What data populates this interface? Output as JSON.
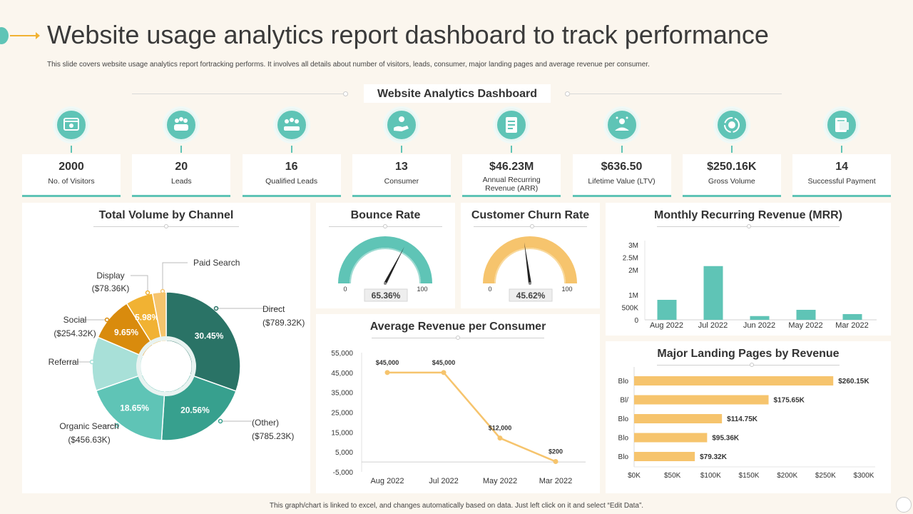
{
  "header": {
    "title": "Website usage analytics report dashboard to track performance",
    "subtitle": "This slide covers website usage analytics report fortracking performs. It involves all details about  number of visitors, leads, consumer, major landing pages and average revenue per consumer."
  },
  "dashboard_title": "Website Analytics Dashboard",
  "kpis": [
    {
      "value": "2000",
      "label": "No. of Visitors",
      "icon": "browser-window-icon"
    },
    {
      "value": "20",
      "label": "Leads",
      "icon": "group-people-icon"
    },
    {
      "value": "16",
      "label": "Qualified Leads",
      "icon": "team-meeting-icon"
    },
    {
      "value": "13",
      "label": "Consumer",
      "icon": "hand-person-icon"
    },
    {
      "value": "$46.23M",
      "label": "Annual Recurring Revenue (ARR)",
      "icon": "document-list-icon"
    },
    {
      "value": "$636.50",
      "label": "Lifetime Value (LTV)",
      "icon": "person-value-icon"
    },
    {
      "value": "$250.16K",
      "label": "Gross Volume",
      "icon": "cycle-money-icon"
    },
    {
      "value": "14",
      "label": "Successful Payment",
      "icon": "receipt-icon"
    }
  ],
  "colors": {
    "teal": "#5fc4b6",
    "dark_teal": "#2a7366",
    "mid_teal": "#37a08e",
    "light_teal": "#a8e0d8",
    "amber": "#f1b233",
    "orange": "#d98b0d",
    "light_amber": "#f6c46d",
    "bar_yellow": "#f6c46d"
  },
  "chart_data": [
    {
      "id": "total-volume",
      "type": "pie",
      "title": "Total Volume by Channel",
      "slices": [
        {
          "label": "Direct",
          "sub": "($789.32K)",
          "percent": 30.45,
          "pct_label": "30.45%"
        },
        {
          "label": "(Other)",
          "sub": "($785.23K)",
          "percent": 20.56,
          "pct_label": "20.56%"
        },
        {
          "label": "Organic Search",
          "sub": "($456.63K)",
          "percent": 18.65,
          "pct_label": "18.65%"
        },
        {
          "label": "Referral",
          "sub": "",
          "percent": 11.74,
          "pct_label": ""
        },
        {
          "label": "Social",
          "sub": "($254.32K)",
          "percent": 9.65,
          "pct_label": "9.65%"
        },
        {
          "label": "Display",
          "sub": "($78.36K)",
          "percent": 5.98,
          "pct_label": "5.98%"
        },
        {
          "label": "Paid Search",
          "sub": "",
          "percent": 2.97,
          "pct_label": ""
        }
      ]
    },
    {
      "id": "bounce-rate",
      "type": "gauge",
      "title": "Bounce Rate",
      "value": 65.36,
      "value_label": "65.36%",
      "min_label": "0",
      "max_label": "100"
    },
    {
      "id": "churn-rate",
      "type": "gauge",
      "title": "Customer Churn Rate",
      "value": 45.62,
      "value_label": "45.62%",
      "min_label": "0",
      "max_label": "100"
    },
    {
      "id": "mrr",
      "type": "bar",
      "title": "Monthly Recurring Revenue (MRR)",
      "categories": [
        "Aug 2022",
        "Jul 2022",
        "Jun 2022",
        "May 2022",
        "Mar 2022"
      ],
      "values": [
        800000,
        2150000,
        150000,
        400000,
        230000
      ],
      "ylim": [
        0,
        3000000
      ],
      "y_ticks": [
        0,
        500000,
        1000000,
        1500000,
        2000000,
        2500000,
        3000000
      ],
      "y_tick_labels": [
        "0",
        "500K",
        "1M",
        "",
        "2M",
        "2.5M",
        "3M"
      ]
    },
    {
      "id": "avg-revenue",
      "type": "line",
      "title": "Average Revenue per Consumer",
      "categories": [
        "Aug 2022",
        "Jul 2022",
        "May 2022",
        "Mar 2022"
      ],
      "values": [
        45000,
        45000,
        12000,
        200
      ],
      "value_labels": [
        "$45,000",
        "$45,000",
        "$12,000",
        "$200"
      ],
      "ylim": [
        -5000,
        55000
      ],
      "y_ticks": [
        -5000,
        5000,
        15000,
        25000,
        35000,
        45000,
        55000
      ],
      "y_tick_labels": [
        "-5,000",
        "5,000",
        "15,000",
        "25,000",
        "35,000",
        "45,000",
        "55,000"
      ]
    },
    {
      "id": "landing-pages",
      "type": "bar",
      "orientation": "horizontal",
      "title": "Major Landing Pages by Revenue",
      "categories": [
        "Blo",
        "Bl/",
        "Blo",
        "Blo",
        "Blo"
      ],
      "values": [
        260150,
        175650,
        114750,
        95360,
        79320
      ],
      "value_labels": [
        "$260.15K",
        "$175.65K",
        "$114.75K",
        "$95.36K",
        "$79.32K"
      ],
      "xlim": [
        0,
        300000
      ],
      "x_ticks": [
        0,
        50000,
        100000,
        150000,
        200000,
        250000,
        300000
      ],
      "x_tick_labels": [
        "$0K",
        "$50K",
        "$100K",
        "$150K",
        "$200K",
        "$250K",
        "$300K"
      ]
    }
  ],
  "footer": "This graph/chart is linked to excel, and changes automatically based on data. Just left click on it and select “Edit Data”."
}
